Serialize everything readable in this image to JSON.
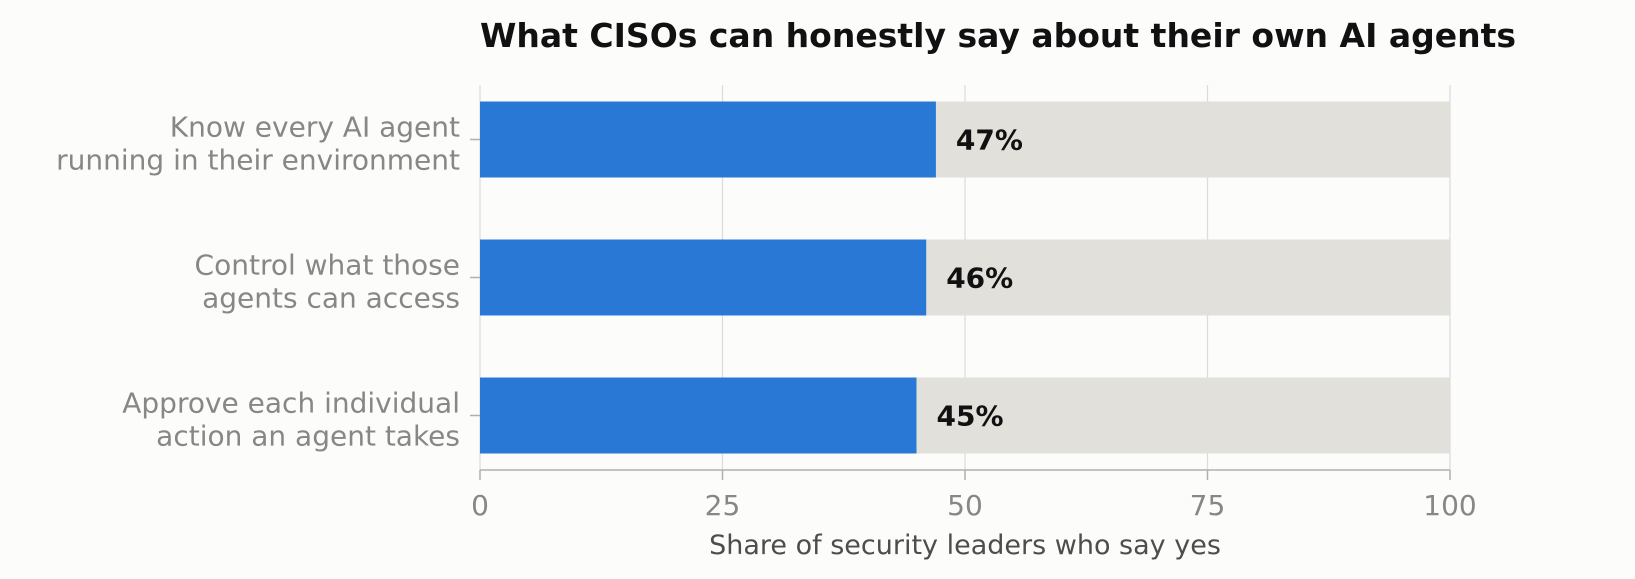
{
  "chart_data": {
    "type": "bar",
    "orientation": "horizontal",
    "title": "What CISOs can honestly say about their own AI agents",
    "xlabel": "Share of security leaders who say yes",
    "ylabel": "",
    "categories": [
      [
        "Know every AI agent",
        "running in their environment"
      ],
      [
        "Control what those",
        "agents can access"
      ],
      [
        "Approve each individual",
        "action an agent takes"
      ]
    ],
    "values": [
      47,
      46,
      45
    ],
    "value_labels": [
      "47%",
      "46%",
      "45%"
    ],
    "background_total": 100,
    "xlim": [
      0,
      100
    ],
    "xticks": [
      0,
      25,
      50,
      75,
      100
    ],
    "xtick_labels": [
      "0",
      "25",
      "50",
      "75",
      "100"
    ],
    "grid": "vertical",
    "legend": "none",
    "colors": {
      "bar": "#2a78d6",
      "remainder": "#e2e0db",
      "grid": "#dcdcdc",
      "axis": "#b0b0b0",
      "background": "#fcfcfb"
    }
  }
}
